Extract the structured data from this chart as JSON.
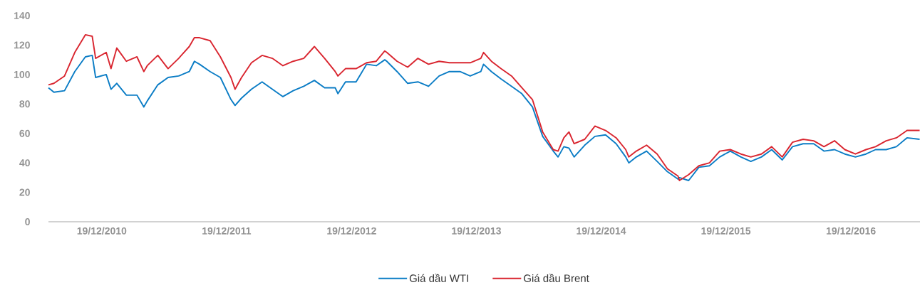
{
  "chart_data": {
    "type": "line",
    "x": [
      "2010-07-16",
      "2010-08-01",
      "2010-09-01",
      "2010-10-01",
      "2010-11-01",
      "2010-11-21",
      "2010-12-01",
      "2011-01-01",
      "2011-01-15",
      "2011-02-01",
      "2011-03-01",
      "2011-04-01",
      "2011-04-21",
      "2011-05-01",
      "2011-06-01",
      "2011-07-01",
      "2011-08-01",
      "2011-09-01",
      "2011-09-16",
      "2011-10-01",
      "2011-11-01",
      "2011-12-01",
      "2012-01-01",
      "2012-01-13",
      "2012-02-01",
      "2012-03-01",
      "2012-04-01",
      "2012-05-01",
      "2012-06-01",
      "2012-07-01",
      "2012-08-01",
      "2012-09-01",
      "2012-10-01",
      "2012-11-01",
      "2012-11-09",
      "2012-12-01",
      "2013-01-01",
      "2013-02-01",
      "2013-03-01",
      "2013-03-26",
      "2013-04-01",
      "2013-05-01",
      "2013-06-01",
      "2013-07-01",
      "2013-08-01",
      "2013-09-01",
      "2013-10-01",
      "2013-11-01",
      "2013-12-01",
      "2014-01-01",
      "2014-01-09",
      "2014-02-01",
      "2014-03-01",
      "2014-04-01",
      "2014-05-01",
      "2014-06-01",
      "2014-07-01",
      "2014-08-01",
      "2014-08-15",
      "2014-09-01",
      "2014-09-16",
      "2014-10-01",
      "2014-11-01",
      "2014-12-01",
      "2015-01-01",
      "2015-02-01",
      "2015-03-01",
      "2015-03-10",
      "2015-04-01",
      "2015-05-01",
      "2015-06-01",
      "2015-07-01",
      "2015-08-01",
      "2015-08-05",
      "2015-09-01",
      "2015-10-01",
      "2015-11-01",
      "2015-12-01",
      "2016-01-01",
      "2016-02-01",
      "2016-03-01",
      "2016-04-01",
      "2016-05-01",
      "2016-06-01",
      "2016-07-01",
      "2016-08-01",
      "2016-09-01",
      "2016-10-01",
      "2016-11-01",
      "2016-12-01",
      "2017-01-01",
      "2017-02-01",
      "2017-03-01",
      "2017-04-01",
      "2017-05-01",
      "2017-06-01",
      "2017-07-08"
    ],
    "series": [
      {
        "name": "Giá dầu WTI",
        "color": "#0a7cc5",
        "values": [
          91,
          88,
          89,
          102,
          112,
          113,
          98,
          100,
          90,
          94,
          86,
          86,
          78,
          82,
          93,
          98,
          99,
          102,
          109,
          107,
          102,
          98,
          83,
          79,
          84,
          90,
          95,
          90,
          85,
          89,
          92,
          96,
          91,
          91,
          87,
          95,
          95,
          107,
          106,
          110,
          109,
          102,
          94,
          95,
          92,
          99,
          102,
          102,
          99,
          102,
          107,
          102,
          97,
          92,
          87,
          78,
          58,
          48,
          44,
          51,
          50,
          44,
          52,
          58,
          59,
          53,
          44,
          40,
          44,
          48,
          41,
          34,
          29,
          30,
          28,
          37,
          38,
          44,
          48,
          44,
          41,
          44,
          49,
          42,
          51,
          53,
          53,
          48,
          49,
          46,
          44,
          46,
          49,
          49,
          51,
          57,
          56
        ]
      },
      {
        "name": "Giá dầu Brent",
        "color": "#d9252f",
        "values": [
          93,
          94,
          99,
          115,
          127,
          126,
          111,
          115,
          104,
          118,
          109,
          112,
          102,
          106,
          113,
          104,
          111,
          119,
          125,
          125,
          123,
          112,
          98,
          90,
          98,
          108,
          113,
          111,
          106,
          109,
          111,
          119,
          111,
          102,
          99,
          104,
          104,
          108,
          109,
          116,
          115,
          109,
          105,
          111,
          107,
          109,
          108,
          108,
          108,
          111,
          115,
          109,
          104,
          99,
          91,
          83,
          61,
          49,
          48,
          57,
          61,
          53,
          56,
          65,
          62,
          57,
          49,
          44,
          48,
          52,
          46,
          36,
          31,
          28,
          32,
          38,
          40,
          48,
          49,
          46,
          44,
          46,
          51,
          44,
          54,
          56,
          55,
          51,
          55,
          49,
          46,
          49,
          51,
          55,
          57,
          62,
          62
        ]
      }
    ],
    "xlim": [
      "2010-07-16",
      "2017-07-09"
    ],
    "xticks": [
      {
        "value": "2010-12-19",
        "label": "19/12/2010"
      },
      {
        "value": "2011-12-19",
        "label": "19/12/2011"
      },
      {
        "value": "2012-12-19",
        "label": "19/12/2012"
      },
      {
        "value": "2013-12-19",
        "label": "19/12/2013"
      },
      {
        "value": "2014-12-19",
        "label": "19/12/2014"
      },
      {
        "value": "2015-12-19",
        "label": "19/12/2015"
      },
      {
        "value": "2016-12-19",
        "label": "19/12/2016"
      }
    ],
    "ylim": [
      0,
      140
    ],
    "yticks": [
      0,
      20,
      40,
      60,
      80,
      100,
      120,
      140
    ],
    "legend": "bottom"
  }
}
